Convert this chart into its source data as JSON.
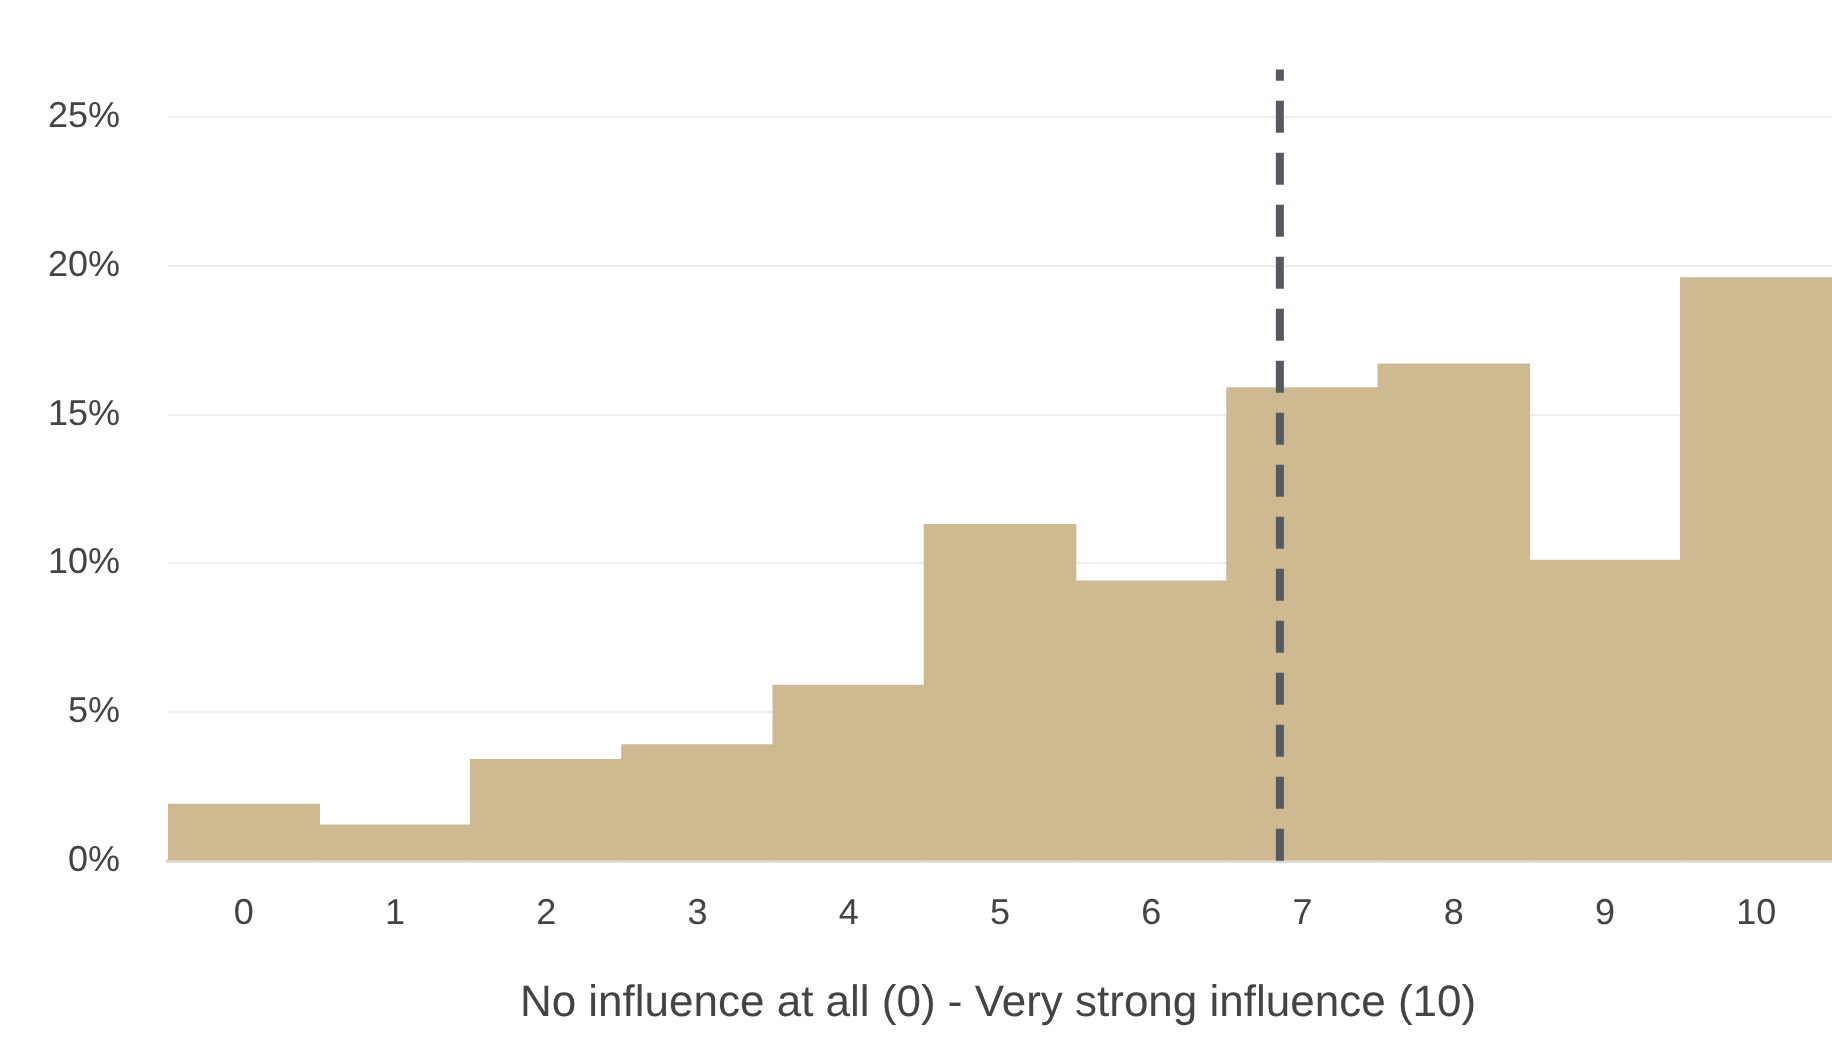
{
  "chart_data": {
    "type": "histogram",
    "xlabel": "No influence at all (0) - Very strong influence (10)",
    "bins": [
      -0.5,
      0.5,
      1.5,
      2.5,
      3.5,
      4.5,
      5.5,
      6.5,
      7.5,
      8.5,
      9.5,
      10.5
    ],
    "values": [
      1.9,
      1.2,
      3.4,
      3.9,
      5.9,
      11.3,
      9.4,
      15.9,
      16.7,
      10.1,
      19.6
    ],
    "color": "#cfb991",
    "xlim": [
      -0.5,
      10.5
    ],
    "xticks": [
      0,
      1,
      2,
      3,
      4,
      5,
      6,
      7,
      8,
      9,
      10
    ],
    "ylim": [
      0,
      26.6
    ],
    "yticks": [
      {
        "value": 0,
        "label": "0%"
      },
      {
        "value": 5,
        "label": "5%"
      },
      {
        "value": 10,
        "label": "10%"
      },
      {
        "value": 15,
        "label": "15%"
      },
      {
        "value": 20,
        "label": "20%"
      },
      {
        "value": 25,
        "label": "25%"
      }
    ],
    "grid": "y",
    "ref_lines": [
      {
        "axis": "x",
        "value": 6.85,
        "color": "#555960",
        "line_style": "dashed"
      }
    ]
  }
}
